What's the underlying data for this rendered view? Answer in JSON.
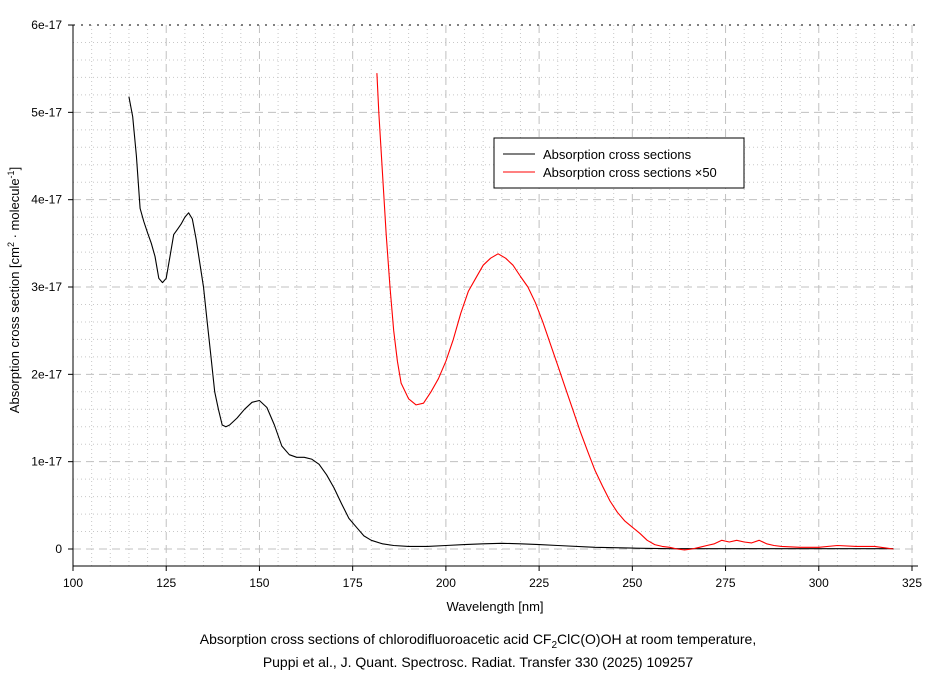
{
  "chart_data": {
    "type": "line",
    "xlabel": "Wavelength [nm]",
    "ylabel": {
      "main": "Absorption cross section [cm",
      "sup1": "2",
      "mid": " · molecule",
      "sup2": "-1",
      "end": "]"
    },
    "xlim": [
      100,
      325
    ],
    "ylim": [
      -2e-18,
      6e-17
    ],
    "x_ticks": [
      "100",
      "125",
      "150",
      "175",
      "200",
      "225",
      "250",
      "275",
      "300",
      "325"
    ],
    "x_tick_values": [
      100,
      125,
      150,
      175,
      200,
      225,
      250,
      275,
      300,
      325
    ],
    "y_ticks": [
      "0",
      "1e-17",
      "2e-17",
      "3e-17",
      "4e-17",
      "5e-17",
      "6e-17"
    ],
    "y_tick_values": [
      0,
      1,
      2,
      3,
      4,
      5,
      6
    ],
    "y_unit": "1e-17",
    "grid": true,
    "legend_position": "upper-right",
    "series": [
      {
        "name": "Absorption cross sections",
        "color": "#000000",
        "x": [
          115,
          116,
          117,
          118,
          119,
          120,
          121,
          122,
          123,
          124,
          125,
          126,
          127,
          128,
          129,
          130,
          131,
          132,
          133,
          135,
          136,
          137,
          138,
          139,
          140,
          141,
          142,
          144,
          146,
          148,
          150,
          152,
          154,
          156,
          158,
          160,
          162,
          164,
          166,
          168,
          170,
          172,
          174,
          176,
          178,
          180,
          183,
          186,
          190,
          195,
          200,
          205,
          210,
          215,
          220,
          225,
          230,
          240,
          250,
          260,
          320
        ],
        "y": [
          5.18,
          4.95,
          4.5,
          3.9,
          3.75,
          3.62,
          3.5,
          3.35,
          3.1,
          3.05,
          3.1,
          3.35,
          3.6,
          3.66,
          3.72,
          3.8,
          3.85,
          3.78,
          3.55,
          3.0,
          2.6,
          2.2,
          1.8,
          1.6,
          1.42,
          1.4,
          1.42,
          1.5,
          1.6,
          1.68,
          1.7,
          1.62,
          1.42,
          1.18,
          1.08,
          1.05,
          1.05,
          1.03,
          0.97,
          0.85,
          0.7,
          0.52,
          0.35,
          0.25,
          0.15,
          0.1,
          0.06,
          0.04,
          0.03,
          0.03,
          0.04,
          0.05,
          0.06,
          0.065,
          0.06,
          0.05,
          0.04,
          0.02,
          0.01,
          0.003,
          0.003
        ]
      },
      {
        "name": "Absorption cross sections ×50",
        "color": "#ff0000",
        "x": [
          181.5,
          182,
          183,
          184,
          185,
          186,
          187,
          188,
          190,
          192,
          194,
          196,
          198,
          200,
          202,
          204,
          206,
          208,
          210,
          212,
          214,
          216,
          218,
          220,
          222,
          224,
          226,
          228,
          230,
          232,
          234,
          236,
          238,
          240,
          242,
          244,
          246,
          248,
          250,
          252,
          254,
          256,
          258,
          260,
          262,
          264,
          266,
          268,
          270,
          272,
          274,
          276,
          278,
          280,
          282,
          284,
          286,
          288,
          290,
          295,
          300,
          305,
          310,
          315,
          320
        ],
        "y": [
          5.45,
          5.0,
          4.3,
          3.6,
          3.0,
          2.5,
          2.15,
          1.9,
          1.72,
          1.65,
          1.67,
          1.8,
          1.95,
          2.15,
          2.4,
          2.7,
          2.95,
          3.1,
          3.25,
          3.33,
          3.38,
          3.33,
          3.25,
          3.12,
          3.0,
          2.82,
          2.6,
          2.35,
          2.1,
          1.85,
          1.6,
          1.35,
          1.12,
          0.9,
          0.72,
          0.55,
          0.42,
          0.32,
          0.25,
          0.18,
          0.1,
          0.05,
          0.03,
          0.02,
          0,
          -0.01,
          0,
          0.02,
          0.04,
          0.06,
          0.1,
          0.08,
          0.1,
          0.08,
          0.07,
          0.1,
          0.06,
          0.04,
          0.03,
          0.02,
          0.02,
          0.04,
          0.03,
          0.03,
          0.0
        ]
      }
    ],
    "caption": {
      "line1_a": "Absorption cross sections of chlorodifluoroacetic acid CF",
      "line1_sub": "2",
      "line1_b": "ClC(O)OH at room temperature,",
      "line2": "Puppi et al., J. Quant. Spectrosc. Radiat. Transfer 330 (2025) 109257"
    }
  }
}
